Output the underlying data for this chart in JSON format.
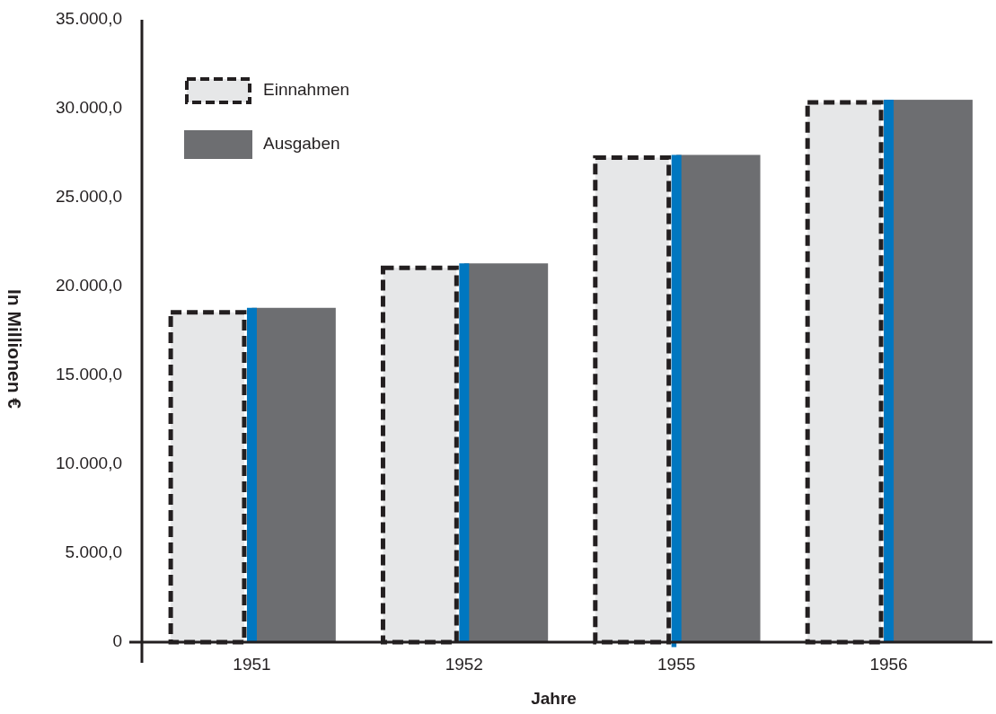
{
  "chart_data": {
    "type": "bar",
    "xlabel": "Jahre",
    "ylabel": "In Millionen €",
    "categories": [
      "1951",
      "1952",
      "1955",
      "1956"
    ],
    "series": [
      {
        "name": "Einnahmen",
        "color": "#e6e7e8",
        "values": [
          18700,
          21200,
          27400,
          30500
        ]
      },
      {
        "name": "Ausgaben",
        "color": "#6d6e71",
        "values": [
          18800,
          21300,
          27400,
          30500
        ]
      }
    ],
    "ylim": [
      0,
      35000
    ],
    "yticks": [
      {
        "value": 0,
        "label": "0"
      },
      {
        "value": 5000,
        "label": "5.000,0"
      },
      {
        "value": 10000,
        "label": "10.000,0"
      },
      {
        "value": 15000,
        "label": "15.000,0"
      },
      {
        "value": 20000,
        "label": "20.000,0"
      },
      {
        "value": 25000,
        "label": "25.000,0"
      },
      {
        "value": 30000,
        "label": "30.000,0"
      },
      {
        "value": 35000,
        "label": "35.000,0"
      }
    ],
    "grid": false,
    "legend": "top left"
  }
}
